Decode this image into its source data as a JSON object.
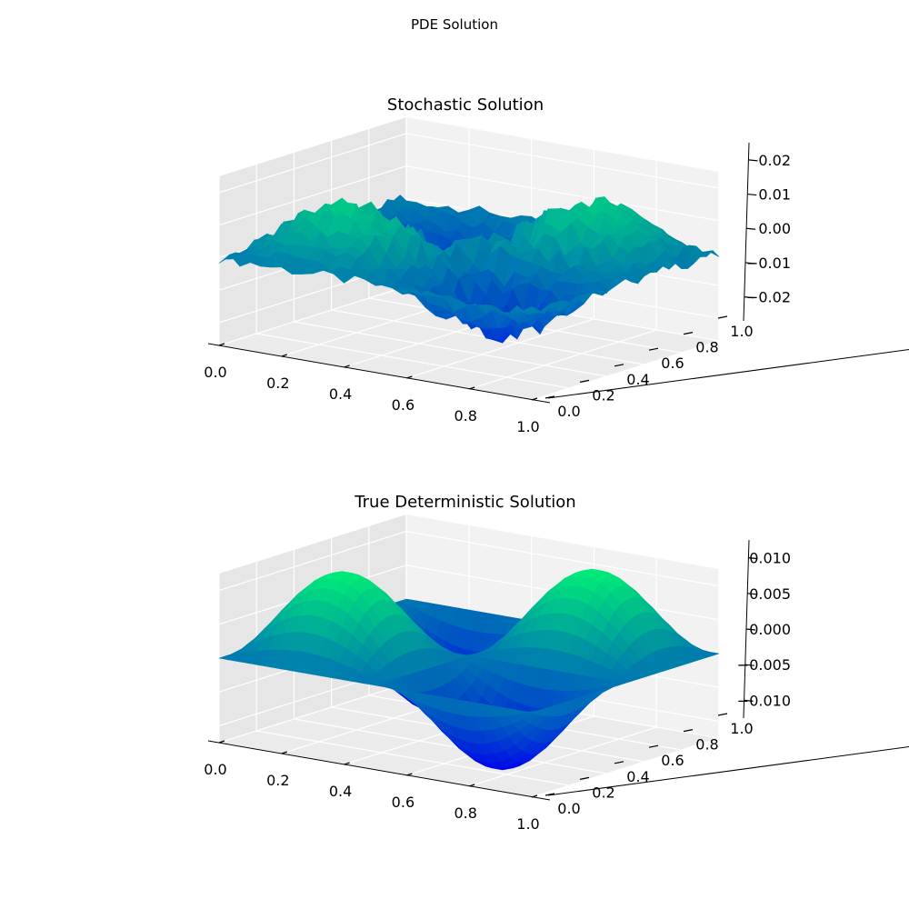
{
  "figure": {
    "title": "PDE Solution"
  },
  "chart_data": [
    {
      "type": "surface3d",
      "title": "Stochastic Solution",
      "colormap": "winter",
      "colormap_colors": [
        "#0000ff",
        "#00ff80"
      ],
      "xlim": [
        0,
        1
      ],
      "ylim": [
        0,
        1
      ],
      "zlim": [
        -0.027,
        0.025
      ],
      "xticks": [
        "0.0",
        "0.2",
        "0.4",
        "0.6",
        "0.8",
        "1.0"
      ],
      "yticks": [
        "0.0",
        "0.2",
        "0.4",
        "0.6",
        "0.8",
        "1.0"
      ],
      "zticks": [
        "−0.02",
        "−0.01",
        "0.00",
        "0.01",
        "0.02"
      ],
      "xtick_values": [
        0,
        0.2,
        0.4,
        0.6,
        0.8,
        1.0
      ],
      "ytick_values": [
        0,
        0.2,
        0.4,
        0.6,
        0.8,
        1.0
      ],
      "ztick_values": [
        -0.02,
        -0.01,
        0.0,
        0.01,
        0.02
      ],
      "surface": {
        "function": "0.015*sin(2*pi*x)*sin(2*pi*y) + noise",
        "amplitude": 0.015,
        "noise_amplitude": 0.005,
        "approx_z_range": [
          -0.026,
          0.023
        ]
      },
      "grid": true
    },
    {
      "type": "surface3d",
      "title": "True Deterministic Solution",
      "colormap": "winter",
      "colormap_colors": [
        "#0000ff",
        "#00ff80"
      ],
      "xlim": [
        0,
        1
      ],
      "ylim": [
        0,
        1
      ],
      "zlim": [
        -0.0125,
        0.0125
      ],
      "xticks": [
        "0.0",
        "0.2",
        "0.4",
        "0.6",
        "0.8",
        "1.0"
      ],
      "yticks": [
        "0.0",
        "0.2",
        "0.4",
        "0.6",
        "0.8",
        "1.0"
      ],
      "zticks": [
        "−0.010",
        "−0.005",
        "0.000",
        "0.005",
        "0.010"
      ],
      "xtick_values": [
        0,
        0.2,
        0.4,
        0.6,
        0.8,
        1.0
      ],
      "ytick_values": [
        0,
        0.2,
        0.4,
        0.6,
        0.8,
        1.0
      ],
      "ztick_values": [
        -0.01,
        -0.005,
        0.0,
        0.005,
        0.01
      ],
      "surface": {
        "function": "0.0125*sin(2*pi*x)*sin(2*pi*y)",
        "amplitude": 0.0125,
        "noise_amplitude": 0,
        "approx_z_range": [
          -0.0125,
          0.0125
        ]
      },
      "grid": true
    }
  ]
}
